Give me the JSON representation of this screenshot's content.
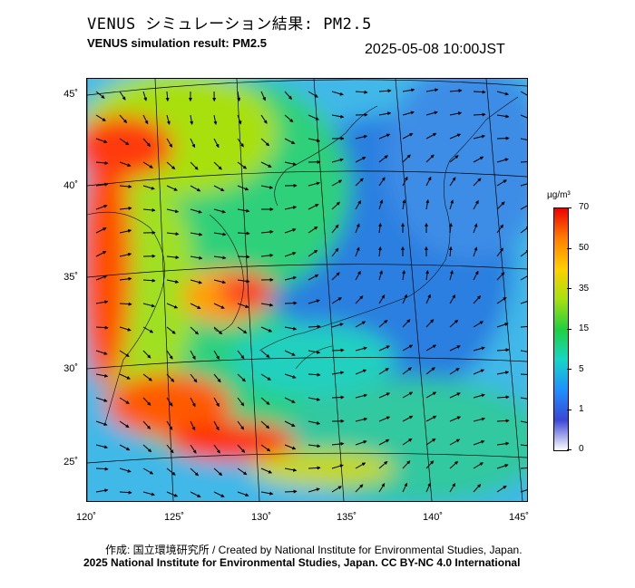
{
  "header": {
    "title_jp": "VENUS シミュレーション結果: PM2.5",
    "title_en": "VENUS simulation result: PM2.5",
    "timestamp": "2025-05-08 10:00JST"
  },
  "map": {
    "lat_labels": [
      "45˚",
      "40˚",
      "35˚",
      "30˚",
      "25˚"
    ],
    "lon_labels": [
      "120˚",
      "125˚",
      "130˚",
      "135˚",
      "140˚",
      "145˚"
    ]
  },
  "colorbar": {
    "unit": "µg/m³",
    "ticks": [
      "70",
      "50",
      "35",
      "15",
      "5",
      "1",
      "0"
    ],
    "colors": [
      "#ffffff",
      "#3b47d6",
      "#1e90ff",
      "#16d6c6",
      "#20d040",
      "#a8e010",
      "#ffd000",
      "#ff8000",
      "#ee0000"
    ]
  },
  "footer": {
    "credit": "作成: 国立環境研究所 / Created by National Institute for Environmental Studies, Japan.",
    "copyright": "2025 National Institute for Environmental Studies, Japan. CC BY-NC 4.0 International"
  }
}
